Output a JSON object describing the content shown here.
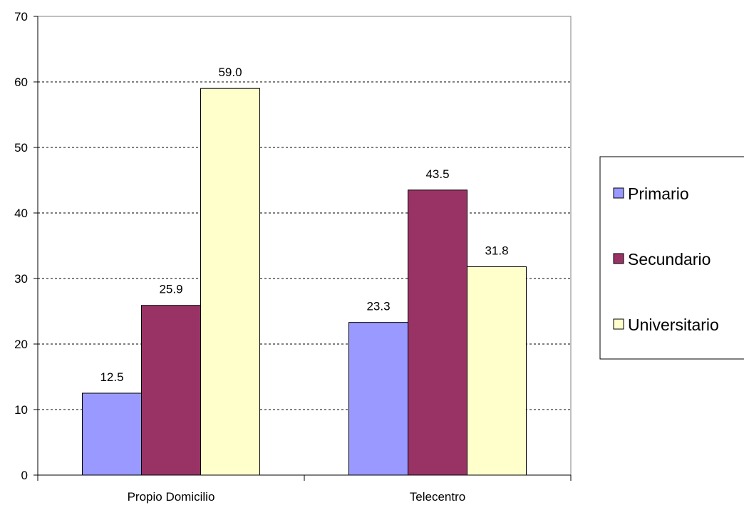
{
  "chart_data": {
    "type": "bar",
    "title": "",
    "xlabel": "",
    "ylabel": "",
    "categories": [
      "Propio Domicilio",
      "Telecentro"
    ],
    "series": [
      {
        "name": "Primario",
        "values": [
          12.5,
          23.3
        ],
        "color": "#9999ff"
      },
      {
        "name": "Secundario",
        "values": [
          25.9,
          43.5
        ],
        "color": "#993366"
      },
      {
        "name": "Universitario",
        "values": [
          59.0,
          31.8
        ],
        "color": "#ffffcc"
      }
    ],
    "data_labels": [
      [
        "12.5",
        "23.3"
      ],
      [
        "25.9",
        "43.5"
      ],
      [
        "59.0",
        "31.8"
      ]
    ],
    "ylim": [
      0,
      70
    ],
    "yticks": [
      0,
      10,
      20,
      30,
      40,
      50,
      60,
      70
    ],
    "ytick_labels": [
      "0",
      "10",
      "20",
      "30",
      "40",
      "50",
      "60",
      "70"
    ],
    "grid": "horizontal-dashed",
    "legend_position": "right"
  }
}
